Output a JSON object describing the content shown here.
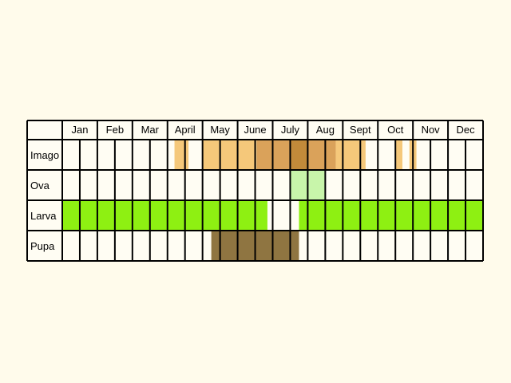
{
  "months": [
    "Jan",
    "Feb",
    "Mar",
    "April",
    "May",
    "June",
    "July",
    "Aug",
    "Sept",
    "Oct",
    "Nov",
    "Dec"
  ],
  "stages": [
    {
      "label": "Imago",
      "segments": [
        {
          "start": 3.2,
          "end": 3.6,
          "color": "#f5c87a"
        },
        {
          "start": 4.0,
          "end": 5.55,
          "color": "#f5c87a"
        },
        {
          "start": 5.55,
          "end": 6.5,
          "color": "#daa25a"
        },
        {
          "start": 6.5,
          "end": 7.0,
          "color": "#c28a3a"
        },
        {
          "start": 7.0,
          "end": 7.8,
          "color": "#daa25a"
        },
        {
          "start": 7.8,
          "end": 8.65,
          "color": "#f5c87a"
        },
        {
          "start": 9.5,
          "end": 9.7,
          "color": "#f5c87a"
        },
        {
          "start": 9.9,
          "end": 10.1,
          "color": "#f5c87a"
        }
      ]
    },
    {
      "label": "Ova",
      "segments": [
        {
          "start": 6.5,
          "end": 7.5,
          "color": "#c8f5aa"
        }
      ]
    },
    {
      "label": "Larva",
      "segments": [
        {
          "start": 0.0,
          "end": 5.85,
          "color": "#8ef012"
        },
        {
          "start": 6.75,
          "end": 12.0,
          "color": "#8ef012"
        }
      ]
    },
    {
      "label": "Pupa",
      "segments": [
        {
          "start": 4.25,
          "end": 6.75,
          "color": "#8f7541"
        }
      ]
    }
  ],
  "colors": {
    "background": "#fffbeb",
    "cell": "#fffdf3",
    "grid": "#000000"
  }
}
